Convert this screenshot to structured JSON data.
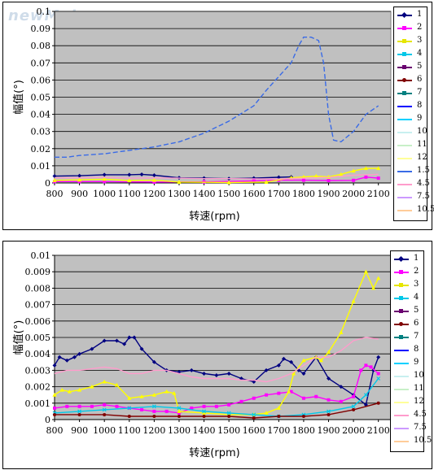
{
  "watermark": "newMaker.com",
  "chart_data": [
    {
      "type": "line",
      "title": "",
      "xlabel": "转速(rpm)",
      "ylabel": "幅值(°)",
      "xlim": [
        800,
        2150
      ],
      "ylim": [
        0,
        0.1
      ],
      "xticks": [
        "800",
        "900",
        "1000",
        "1100",
        "1200",
        "1300",
        "1400",
        "1500",
        "1600",
        "1700",
        "1800",
        "1900",
        "2000",
        "2100"
      ],
      "yticks": [
        "0",
        "0.01",
        "0.02",
        "0.03",
        "0.04",
        "0.05",
        "0.06",
        "0.07",
        "0.08",
        "0.09",
        "0.1"
      ],
      "grid": true,
      "legend_position": "right",
      "series": [
        {
          "name": "1",
          "color": "#000080",
          "marker": "diamond",
          "x": [
            800,
            900,
            1000,
            1100,
            1150,
            1200,
            1300,
            1400,
            1500,
            1600,
            1700,
            1750
          ],
          "y": [
            0.004,
            0.0042,
            0.0048,
            0.0048,
            0.005,
            0.0045,
            0.003,
            0.0028,
            0.0025,
            0.0028,
            0.0033,
            0.0035
          ]
        },
        {
          "name": "2",
          "color": "#ff00ff",
          "marker": "square",
          "x": [
            800,
            900,
            1000,
            1200,
            1400,
            1600,
            1700,
            1800,
            1900,
            2000,
            2050,
            2100
          ],
          "y": [
            0.0008,
            0.0008,
            0.0008,
            0.0005,
            0.0006,
            0.0012,
            0.0016,
            0.0016,
            0.0014,
            0.0015,
            0.0034,
            0.0028
          ]
        },
        {
          "name": "3",
          "color": "#ffff00",
          "marker": "triangle",
          "x": [
            800,
            900,
            1000,
            1100,
            1200,
            1300,
            1500,
            1650,
            1750,
            1800,
            1850,
            1900,
            1950,
            2000,
            2050,
            2100
          ],
          "y": [
            0.0015,
            0.0018,
            0.0022,
            0.0014,
            0.0016,
            0.0005,
            0.0003,
            0.0005,
            0.003,
            0.0035,
            0.004,
            0.0035,
            0.005,
            0.007,
            0.0085,
            0.0085
          ]
        },
        {
          "name": "1.5",
          "color": "#3a6be6",
          "marker": "none",
          "x": [
            800,
            850,
            900,
            1000,
            1100,
            1200,
            1300,
            1400,
            1500,
            1600,
            1650,
            1700,
            1750,
            1780,
            1800,
            1830,
            1860,
            1880,
            1900,
            1920,
            1950,
            2000,
            2050,
            2100
          ],
          "y": [
            0.015,
            0.015,
            0.016,
            0.017,
            0.019,
            0.021,
            0.024,
            0.029,
            0.036,
            0.045,
            0.054,
            0.062,
            0.07,
            0.08,
            0.085,
            0.085,
            0.083,
            0.07,
            0.04,
            0.025,
            0.024,
            0.03,
            0.04,
            0.045
          ]
        },
        {
          "name": "12",
          "color": "#ff9ccc",
          "marker": "none",
          "x": [
            800,
            900,
            1000,
            1100,
            1200,
            1300,
            1400,
            1500,
            1600,
            1700,
            1800,
            1900,
            2000,
            2100
          ],
          "y": [
            0.003,
            0.003,
            0.0032,
            0.0028,
            0.003,
            0.0028,
            0.0025,
            0.0025,
            0.0024,
            0.0023,
            0.0028,
            0.0032,
            0.0045,
            0.005
          ]
        }
      ],
      "legend": [
        "1",
        "2",
        "3",
        "4",
        "5",
        "6",
        "7",
        "8",
        "9",
        "10",
        "11",
        "12",
        "1.5",
        "4.5",
        "7.5",
        "10.5"
      ]
    },
    {
      "type": "line",
      "title": "",
      "xlabel": "转速(rpm)",
      "ylabel": "幅值(°)",
      "xlim": [
        800,
        2150
      ],
      "ylim": [
        0,
        0.01
      ],
      "xticks": [
        "800",
        "900",
        "1000",
        "1100",
        "1200",
        "1300",
        "1400",
        "1500",
        "1600",
        "1700",
        "1800",
        "1900",
        "2000",
        "2100"
      ],
      "yticks": [
        "0",
        "0.001",
        "0.002",
        "0.003",
        "0.004",
        "0.005",
        "0.006",
        "0.007",
        "0.008",
        "0.009",
        "0.01"
      ],
      "grid": true,
      "legend_position": "right",
      "series": [
        {
          "name": "1",
          "color": "#000080",
          "marker": "diamond",
          "x": [
            800,
            820,
            850,
            880,
            900,
            950,
            1000,
            1050,
            1080,
            1100,
            1120,
            1150,
            1200,
            1250,
            1300,
            1350,
            1400,
            1450,
            1500,
            1550,
            1600,
            1650,
            1700,
            1720,
            1750,
            1780,
            1800,
            1850,
            1900,
            1950,
            2000,
            2050,
            2080,
            2100
          ],
          "y": [
            0.0033,
            0.0038,
            0.0036,
            0.0038,
            0.004,
            0.0043,
            0.0048,
            0.0048,
            0.0046,
            0.005,
            0.005,
            0.0043,
            0.0035,
            0.003,
            0.0029,
            0.003,
            0.0028,
            0.0027,
            0.0028,
            0.0025,
            0.0023,
            0.003,
            0.0033,
            0.0037,
            0.0035,
            0.003,
            0.0028,
            0.0038,
            0.0025,
            0.002,
            0.0015,
            0.0009,
            0.003,
            0.0038
          ]
        },
        {
          "name": "2",
          "color": "#ff00ff",
          "marker": "square",
          "x": [
            800,
            850,
            900,
            950,
            1000,
            1050,
            1100,
            1150,
            1200,
            1250,
            1300,
            1350,
            1400,
            1450,
            1500,
            1550,
            1600,
            1650,
            1700,
            1750,
            1800,
            1850,
            1900,
            1950,
            2000,
            2030,
            2050,
            2070,
            2100
          ],
          "y": [
            0.0007,
            0.0008,
            0.0008,
            0.0008,
            0.0009,
            0.0008,
            0.0007,
            0.0006,
            0.0005,
            0.0005,
            0.0004,
            0.0007,
            0.0008,
            0.0008,
            0.0009,
            0.0011,
            0.0013,
            0.0015,
            0.0016,
            0.0017,
            0.0013,
            0.0014,
            0.0012,
            0.0011,
            0.0014,
            0.003,
            0.0033,
            0.0032,
            0.0028
          ]
        },
        {
          "name": "3",
          "color": "#ffff00",
          "marker": "triangle",
          "x": [
            800,
            830,
            860,
            900,
            950,
            1000,
            1050,
            1100,
            1150,
            1200,
            1250,
            1280,
            1300,
            1400,
            1500,
            1600,
            1650,
            1700,
            1740,
            1760,
            1800,
            1850,
            1870,
            1900,
            1950,
            2000,
            2050,
            2080,
            2100
          ],
          "y": [
            0.0015,
            0.0018,
            0.0017,
            0.0018,
            0.002,
            0.0023,
            0.0021,
            0.0013,
            0.0014,
            0.0015,
            0.0017,
            0.0016,
            0.0005,
            0.0004,
            0.0003,
            0.0003,
            0.0004,
            0.0007,
            0.0017,
            0.0028,
            0.0036,
            0.0038,
            0.0036,
            0.0041,
            0.0053,
            0.0072,
            0.009,
            0.008,
            0.0086
          ]
        },
        {
          "name": "4",
          "color": "#00c8e8",
          "marker": "x",
          "x": [
            800,
            900,
            1000,
            1100,
            1200,
            1300,
            1400,
            1500,
            1600,
            1700,
            1800,
            1900,
            2000,
            2050,
            2100
          ],
          "y": [
            0.0004,
            0.0005,
            0.0006,
            0.0007,
            0.0008,
            0.0007,
            0.0005,
            0.0004,
            0.0003,
            0.0002,
            0.0003,
            0.0005,
            0.0008,
            0.0015,
            0.0025
          ]
        },
        {
          "name": "12",
          "color": "#ff9ccc",
          "marker": "none",
          "x": [
            800,
            850,
            900,
            950,
            1000,
            1050,
            1100,
            1150,
            1200,
            1250,
            1300,
            1350,
            1400,
            1450,
            1500,
            1550,
            1600,
            1650,
            1700,
            1750,
            1800,
            1850,
            1900,
            1950,
            2000,
            2050,
            2100
          ],
          "y": [
            0.0028,
            0.003,
            0.003,
            0.0031,
            0.0032,
            0.0031,
            0.0028,
            0.0028,
            0.003,
            0.003,
            0.0028,
            0.0026,
            0.0025,
            0.0025,
            0.0025,
            0.0024,
            0.0024,
            0.0023,
            0.0025,
            0.0028,
            0.0033,
            0.0038,
            0.0038,
            0.0042,
            0.0048,
            0.005,
            0.0049
          ]
        },
        {
          "name": "6",
          "color": "#800000",
          "marker": "circle",
          "x": [
            800,
            900,
            1000,
            1100,
            1200,
            1300,
            1400,
            1500,
            1600,
            1700,
            1800,
            1900,
            2000,
            2100
          ],
          "y": [
            0.0003,
            0.0003,
            0.0003,
            0.0002,
            0.0002,
            0.0002,
            0.0002,
            0.0002,
            0.0001,
            0.0002,
            0.0002,
            0.0003,
            0.0006,
            0.001
          ]
        }
      ],
      "legend": [
        "1",
        "2",
        "3",
        "4",
        "5",
        "6",
        "7",
        "8",
        "9",
        "10",
        "11",
        "12",
        "4.5",
        "7.5",
        "10.5"
      ]
    }
  ],
  "legend_styles": {
    "1": {
      "color": "#000080",
      "marker": "diamond"
    },
    "2": {
      "color": "#ff00ff",
      "marker": "square"
    },
    "3": {
      "color": "#e6e600",
      "marker": "triangle"
    },
    "4": {
      "color": "#00c8e8",
      "marker": "x"
    },
    "5": {
      "color": "#6a0070",
      "marker": "x"
    },
    "6": {
      "color": "#800000",
      "marker": "circle"
    },
    "7": {
      "color": "#008080",
      "marker": "plus"
    },
    "8": {
      "color": "#0000ff",
      "marker": "none"
    },
    "9": {
      "color": "#00d0ff",
      "marker": "none"
    },
    "10": {
      "color": "#c8f0f0",
      "marker": "none"
    },
    "11": {
      "color": "#c8f0c8",
      "marker": "none"
    },
    "12": {
      "color": "#ffff99",
      "marker": "none"
    },
    "1.5": {
      "color": "#3a6be6",
      "marker": "none"
    },
    "4.5": {
      "color": "#ff9ccc",
      "marker": "none"
    },
    "7.5": {
      "color": "#cc99ff",
      "marker": "none"
    },
    "10.5": {
      "color": "#ffcc99",
      "marker": "none"
    }
  }
}
